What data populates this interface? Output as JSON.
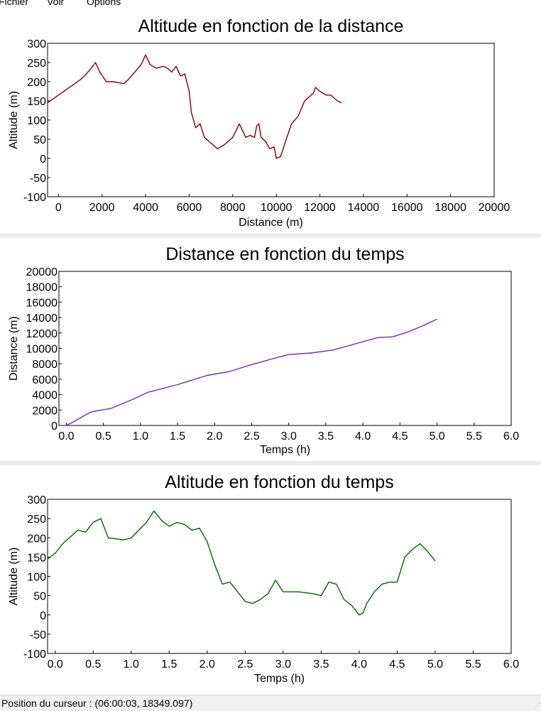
{
  "menu": [
    "Fichier",
    "Voir",
    "Options"
  ],
  "status": {
    "label": "Position du curseur :",
    "value": "(06:00:03, 18349.097)"
  },
  "chart_data": [
    {
      "type": "line",
      "title": "Altitude en fonction de la distance",
      "xlabel": "Distance (m)",
      "ylabel": "Altitude (m)",
      "xlim": [
        -500,
        20000
      ],
      "ylim": [
        -100,
        300
      ],
      "xticks": [
        0,
        2000,
        4000,
        6000,
        8000,
        10000,
        12000,
        14000,
        16000,
        18000,
        20000
      ],
      "yticks": [
        -100,
        -50,
        0,
        50,
        100,
        150,
        200,
        250,
        300
      ],
      "color": "#800000",
      "grid": false,
      "series": [
        {
          "x": [
            -500,
            0,
            500,
            1000,
            1200,
            1500,
            1700,
            1900,
            2200,
            2500,
            3000,
            3200,
            3500,
            3800,
            4000,
            4200,
            4500,
            4800,
            5000,
            5200,
            5400,
            5600,
            5800,
            6000,
            6100,
            6300,
            6500,
            6700,
            7000,
            7300,
            7600,
            8000,
            8300,
            8600,
            8800,
            9000,
            9100,
            9200,
            9300,
            9500,
            9700,
            9900,
            10000,
            10200,
            10400,
            10700,
            11000,
            11300,
            11500,
            11700,
            11800,
            12000,
            12300,
            12500,
            12800,
            13000
          ],
          "y": [
            145,
            165,
            185,
            205,
            215,
            235,
            250,
            225,
            200,
            200,
            195,
            205,
            225,
            245,
            270,
            245,
            235,
            240,
            235,
            225,
            240,
            215,
            220,
            175,
            120,
            80,
            90,
            55,
            40,
            25,
            35,
            55,
            90,
            55,
            60,
            55,
            85,
            90,
            55,
            45,
            25,
            30,
            0,
            5,
            40,
            90,
            110,
            150,
            160,
            170,
            185,
            175,
            165,
            165,
            150,
            145
          ]
        }
      ]
    },
    {
      "type": "line",
      "title": "Distance en fonction du temps",
      "xlabel": "Temps (h)",
      "ylabel": "Distance (m)",
      "xlim": [
        -0.1,
        6.0
      ],
      "ylim": [
        0,
        20000
      ],
      "xticks": [
        0.0,
        0.5,
        1.0,
        1.5,
        2.0,
        2.5,
        3.0,
        3.5,
        4.0,
        4.5,
        5.0,
        5.5,
        6.0
      ],
      "xtick_labels": [
        "0.0",
        "0.5",
        "1.0",
        "1.5",
        "2.0",
        "2.5",
        "3.0",
        "3.5",
        "4.0",
        "4.5",
        "5.0",
        "5.5",
        "6.0"
      ],
      "yticks": [
        0,
        2000,
        4000,
        6000,
        8000,
        10000,
        12000,
        14000,
        16000,
        18000,
        20000
      ],
      "color": "#6a2ec8",
      "grid": false,
      "series": [
        {
          "x": [
            0.0,
            0.1,
            0.3,
            0.35,
            0.6,
            0.9,
            1.1,
            1.5,
            1.9,
            2.2,
            2.5,
            2.8,
            3.0,
            3.3,
            3.6,
            3.9,
            4.2,
            4.4,
            4.6,
            4.8,
            5.0
          ],
          "y": [
            0,
            500,
            1600,
            1800,
            2200,
            3400,
            4300,
            5300,
            6500,
            7000,
            7900,
            8700,
            9200,
            9400,
            9800,
            10600,
            11400,
            11500,
            12100,
            12900,
            13800
          ]
        }
      ]
    },
    {
      "type": "line",
      "title": "Altitude en fonction du temps",
      "xlabel": "Temps (h)",
      "ylabel": "Altitude (m)",
      "xlim": [
        -0.1,
        6.0
      ],
      "ylim": [
        -100,
        300
      ],
      "xticks": [
        0.0,
        0.5,
        1.0,
        1.5,
        2.0,
        2.5,
        3.0,
        3.5,
        4.0,
        4.5,
        5.0,
        5.5,
        6.0
      ],
      "xtick_labels": [
        "0.0",
        "0.5",
        "1.0",
        "1.5",
        "2.0",
        "2.5",
        "3.0",
        "3.5",
        "4.0",
        "4.5",
        "5.0",
        "5.5",
        "6.0"
      ],
      "yticks": [
        -100,
        -50,
        0,
        50,
        100,
        150,
        200,
        250,
        300
      ],
      "color": "#006400",
      "grid": false,
      "series": [
        {
          "x": [
            -0.1,
            0.0,
            0.1,
            0.3,
            0.4,
            0.5,
            0.6,
            0.65,
            0.7,
            0.9,
            1.0,
            1.1,
            1.2,
            1.3,
            1.4,
            1.5,
            1.6,
            1.7,
            1.8,
            1.9,
            2.0,
            2.1,
            2.2,
            2.3,
            2.4,
            2.5,
            2.6,
            2.7,
            2.8,
            2.9,
            3.0,
            3.2,
            3.4,
            3.5,
            3.6,
            3.7,
            3.8,
            3.9,
            4.0,
            4.05,
            4.1,
            4.2,
            4.3,
            4.4,
            4.5,
            4.6,
            4.7,
            4.8,
            4.9,
            5.0
          ],
          "y": [
            145,
            160,
            185,
            220,
            215,
            240,
            250,
            225,
            200,
            195,
            200,
            220,
            240,
            270,
            245,
            230,
            240,
            235,
            220,
            225,
            190,
            130,
            80,
            85,
            60,
            35,
            30,
            40,
            55,
            90,
            60,
            60,
            55,
            50,
            85,
            80,
            40,
            25,
            0,
            5,
            30,
            60,
            80,
            85,
            85,
            150,
            170,
            185,
            165,
            140
          ]
        }
      ]
    }
  ]
}
